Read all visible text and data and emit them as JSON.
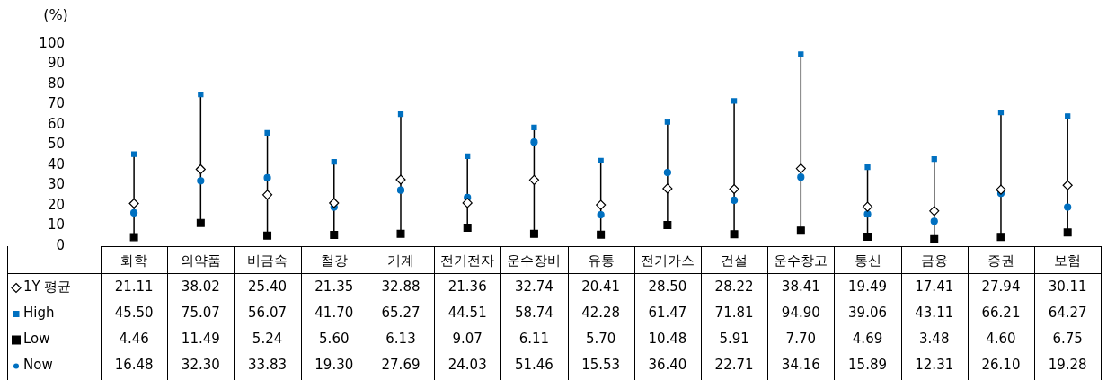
{
  "chart_data": {
    "type": "scatter",
    "ylabel": "(%)",
    "categories": [
      "화학",
      "의약품",
      "비금속",
      "철강",
      "기계",
      "전기전자",
      "운수장비",
      "유통",
      "전기가스",
      "건설",
      "운수창고",
      "통신",
      "금융",
      "증권",
      "보험"
    ],
    "ylim": [
      0,
      100
    ],
    "yticks": [
      0,
      10,
      20,
      30,
      40,
      50,
      60,
      70,
      80,
      90,
      100
    ],
    "grid": "x",
    "legend": "bottom left",
    "series": [
      {
        "name": "1Y 평균",
        "color": "#000000",
        "marker": "diamond",
        "values": [
          21.11,
          38.02,
          25.4,
          21.35,
          32.88,
          21.36,
          32.74,
          20.41,
          28.5,
          28.22,
          38.41,
          19.49,
          17.41,
          27.94,
          30.11
        ],
        "value_labels": [
          "21.11",
          "38.02",
          "25.40",
          "21.35",
          "32.88",
          "21.36",
          "32.74",
          "20.41",
          "28.50",
          "28.22",
          "38.41",
          "19.49",
          "17.41",
          "27.94",
          "30.11"
        ]
      },
      {
        "name": "High",
        "color": "#0070c0",
        "marker": "square",
        "values": [
          45.5,
          75.07,
          56.07,
          41.7,
          65.27,
          44.51,
          58.74,
          42.28,
          61.47,
          71.81,
          94.9,
          39.06,
          43.11,
          66.21,
          64.27
        ],
        "value_labels": [
          "45.50",
          "75.07",
          "56.07",
          "41.70",
          "65.27",
          "44.51",
          "58.74",
          "42.28",
          "61.47",
          "71.81",
          "94.90",
          "39.06",
          "43.11",
          "66.21",
          "64.27"
        ]
      },
      {
        "name": "Low",
        "color": "#000000",
        "marker": "square",
        "values": [
          4.46,
          11.49,
          5.24,
          5.6,
          6.13,
          9.07,
          6.11,
          5.7,
          10.48,
          5.91,
          7.7,
          4.69,
          3.48,
          4.6,
          6.75
        ],
        "value_labels": [
          "4.46",
          "11.49",
          "5.24",
          "5.60",
          "6.13",
          "9.07",
          "6.11",
          "5.70",
          "10.48",
          "5.91",
          "7.70",
          "4.69",
          "3.48",
          "4.60",
          "6.75"
        ]
      },
      {
        "name": "Now",
        "color": "#0070c0",
        "marker": "circle",
        "values": [
          16.48,
          32.3,
          33.83,
          19.3,
          27.69,
          24.03,
          51.46,
          15.53,
          36.4,
          22.71,
          34.16,
          15.89,
          12.31,
          26.1,
          19.28
        ],
        "value_labels": [
          "16.48",
          "32.30",
          "33.83",
          "19.30",
          "27.69",
          "24.03",
          "51.46",
          "15.53",
          "36.40",
          "22.71",
          "34.16",
          "15.89",
          "12.31",
          "26.10",
          "19.28"
        ]
      }
    ]
  }
}
